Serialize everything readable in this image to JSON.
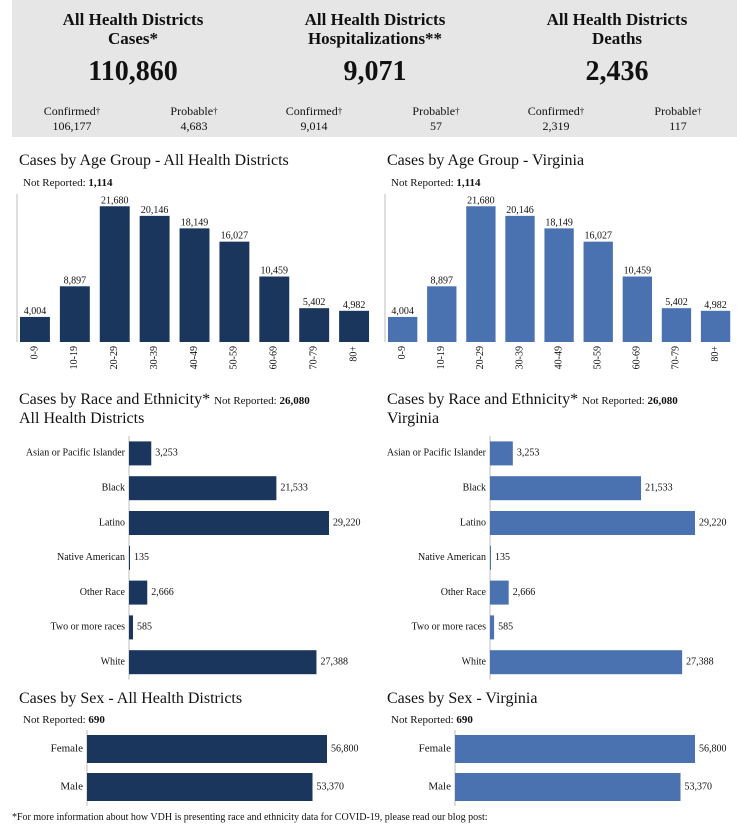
{
  "summary": [
    {
      "title_line1": "All Health Districts",
      "title_line2": "Cases*",
      "total": "110,860",
      "left_label": "Confirmed",
      "left_value": "106,177",
      "right_label": "Probable",
      "right_value": "4,683"
    },
    {
      "title_line1": "All Health Districts",
      "title_line2": "Hospitalizations**",
      "total": "9,071",
      "left_label": "Confirmed",
      "left_value": "9,014",
      "right_label": "Probable",
      "right_value": "57"
    },
    {
      "title_line1": "All Health Districts",
      "title_line2": "Deaths",
      "total": "2,436",
      "left_label": "Confirmed",
      "left_value": "2,319",
      "right_label": "Probable",
      "right_value": "117"
    }
  ],
  "dagger": "†",
  "not_reported_label": "Not Reported:",
  "colors": {
    "dark": "#1b365d",
    "light": "#4a72b0"
  },
  "panels": {
    "age_left": {
      "title": "Cases by Age Group - All Health Districts",
      "not_reported": "1,114"
    },
    "age_right": {
      "title": "Cases by Age Group - Virginia",
      "not_reported": "1,114"
    },
    "race_left": {
      "title_line1": "Cases by Race and Ethnicity*",
      "title_line2": "All Health Districts",
      "not_reported": "26,080"
    },
    "race_right": {
      "title_line1": "Cases by Race and Ethnicity*",
      "title_line2": "Virginia",
      "not_reported": "26,080"
    },
    "sex_left": {
      "title": "Cases by Sex - All Health Districts",
      "not_reported": "690"
    },
    "sex_right": {
      "title": "Cases by Sex - Virginia",
      "not_reported": "690"
    }
  },
  "footer_note": "*For more information about how VDH is presenting race and ethnicity data for COVID-19, please read our blog post:",
  "chart_data": [
    {
      "type": "bar",
      "title": "Cases by Age Group - All Health Districts",
      "categories": [
        "0-9",
        "10-19",
        "20-29",
        "30-39",
        "40-49",
        "50-59",
        "60-69",
        "70-79",
        "80+"
      ],
      "values": [
        4004,
        8897,
        21680,
        20146,
        18149,
        16027,
        10459,
        5402,
        4982
      ],
      "labels": [
        "4,004",
        "8,897",
        "21,680",
        "20,146",
        "18,149",
        "16,027",
        "10,459",
        "5,402",
        "4,982"
      ],
      "ylim": [
        0,
        23000
      ]
    },
    {
      "type": "bar",
      "title": "Cases by Age Group - Virginia",
      "categories": [
        "0-9",
        "10-19",
        "20-29",
        "30-39",
        "40-49",
        "50-59",
        "60-69",
        "70-79",
        "80+"
      ],
      "values": [
        4004,
        8897,
        21680,
        20146,
        18149,
        16027,
        10459,
        5402,
        4982
      ],
      "labels": [
        "4,004",
        "8,897",
        "21,680",
        "20,146",
        "18,149",
        "16,027",
        "10,459",
        "5,402",
        "4,982"
      ],
      "ylim": [
        0,
        23000
      ]
    },
    {
      "type": "bar",
      "orientation": "horizontal",
      "title": "Cases by Race and Ethnicity* All Health Districts",
      "categories": [
        "Asian or Pacific Islander",
        "Black",
        "Latino",
        "Native American",
        "Other Race",
        "Two or more races",
        "White"
      ],
      "values": [
        3253,
        21533,
        29220,
        135,
        2666,
        585,
        27388
      ],
      "labels": [
        "3,253",
        "21,533",
        "29,220",
        "135",
        "2,666",
        "585",
        "27,388"
      ],
      "xlim": [
        0,
        29220
      ]
    },
    {
      "type": "bar",
      "orientation": "horizontal",
      "title": "Cases by Race and Ethnicity* Virginia",
      "categories": [
        "Asian or Pacific Islander",
        "Black",
        "Latino",
        "Native American",
        "Other Race",
        "Two or more races",
        "White"
      ],
      "values": [
        3253,
        21533,
        29220,
        135,
        2666,
        585,
        27388
      ],
      "labels": [
        "3,253",
        "21,533",
        "29,220",
        "135",
        "2,666",
        "585",
        "27,388"
      ],
      "xlim": [
        0,
        29220
      ]
    },
    {
      "type": "bar",
      "orientation": "horizontal",
      "title": "Cases by Sex - All Health Districts",
      "categories": [
        "Female",
        "Male"
      ],
      "values": [
        56800,
        53370
      ],
      "labels": [
        "56,800",
        "53,370"
      ],
      "xlim": [
        0,
        56800
      ]
    },
    {
      "type": "bar",
      "orientation": "horizontal",
      "title": "Cases by Sex - Virginia",
      "categories": [
        "Female",
        "Male"
      ],
      "values": [
        56800,
        53370
      ],
      "labels": [
        "56,800",
        "53,370"
      ],
      "xlim": [
        0,
        56800
      ]
    }
  ]
}
